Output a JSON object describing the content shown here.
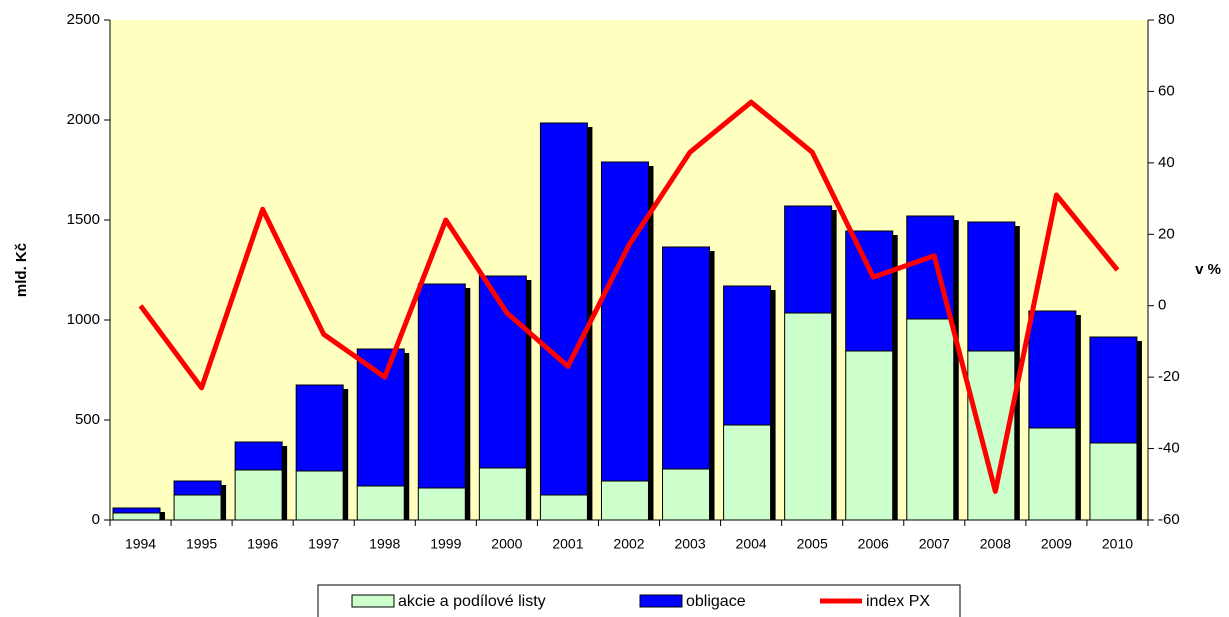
{
  "chart_data": {
    "type": "bar",
    "categories": [
      "1994",
      "1995",
      "1996",
      "1997",
      "1998",
      "1999",
      "2000",
      "2001",
      "2002",
      "2003",
      "2004",
      "2005",
      "2006",
      "2007",
      "2008",
      "2009",
      "2010"
    ],
    "series": [
      {
        "name": "akcie a podílové listy",
        "color": "#ccffcc",
        "values": [
          35,
          125,
          250,
          245,
          170,
          160,
          260,
          125,
          195,
          255,
          475,
          1035,
          845,
          1005,
          845,
          460,
          385
        ]
      },
      {
        "name": "obligace",
        "color": "#0000ff",
        "values": [
          25,
          70,
          140,
          430,
          685,
          1020,
          960,
          1860,
          1595,
          1110,
          695,
          535,
          600,
          515,
          645,
          585,
          530
        ]
      },
      {
        "name": "index PX",
        "color": "#ff0000",
        "type": "line",
        "axis": "y2",
        "values": [
          0,
          -23,
          27,
          -8,
          -20,
          24,
          -2,
          -17,
          17,
          43,
          57,
          43,
          8,
          14,
          -52,
          31,
          10
        ]
      }
    ],
    "ylabel": "mld. Kč",
    "y2label": "v %",
    "ylim": [
      0,
      2500
    ],
    "yticks": [
      0,
      500,
      1000,
      1500,
      2000,
      2500
    ],
    "y2lim": [
      -60,
      80
    ],
    "y2ticks": [
      -60,
      -40,
      -20,
      0,
      20,
      40,
      60,
      80
    ],
    "stacked": true,
    "legend": "bottom"
  }
}
